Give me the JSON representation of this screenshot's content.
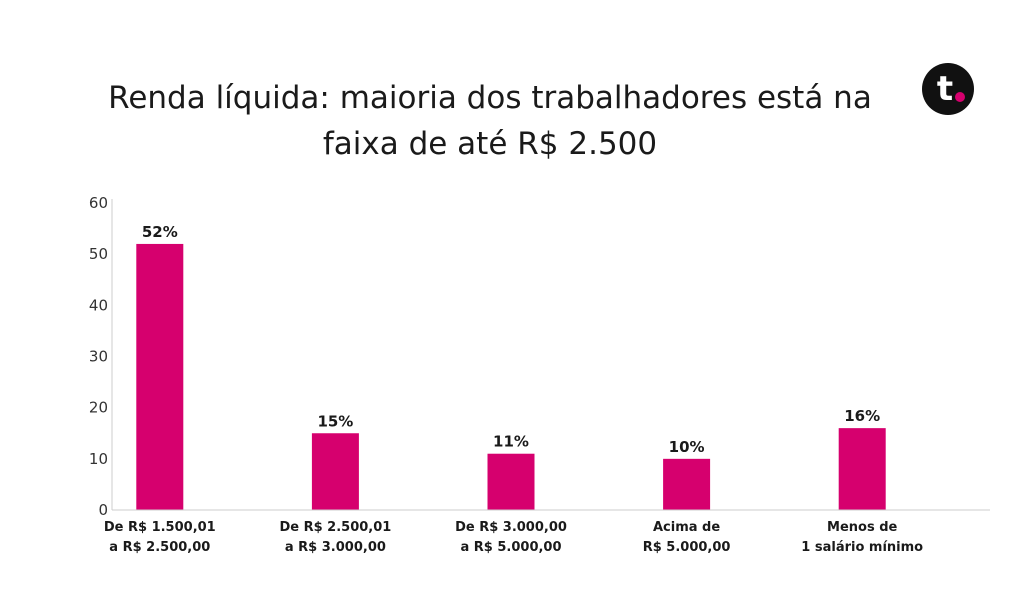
{
  "chart_data": {
    "type": "bar",
    "title_lines": [
      "Renda líquida: maioria dos trabalhadores está na",
      "faixa de até R$ 2.500"
    ],
    "categories": [
      [
        "De R$ 1.500,01",
        "a R$ 2.500,00"
      ],
      [
        "De R$ 2.500,01",
        "a R$ 3.000,00"
      ],
      [
        "De R$ 3.000,00",
        "a R$ 5.000,00"
      ],
      [
        "Acima de",
        "R$ 5.000,00"
      ],
      [
        "Menos de",
        "1 salário mínimo"
      ]
    ],
    "values": [
      52,
      15,
      11,
      10,
      16
    ],
    "data_labels": [
      "52%",
      "15%",
      "11%",
      "10%",
      "16%"
    ],
    "ylim": [
      0,
      60
    ],
    "yticks": [
      0,
      10,
      20,
      30,
      40,
      50,
      60
    ],
    "bar_color": "#d6006e",
    "grid": false,
    "legend": "none"
  },
  "brand": {
    "logo_letter": "t",
    "logo_bg": "#111111",
    "logo_dot": "#d6006e"
  }
}
